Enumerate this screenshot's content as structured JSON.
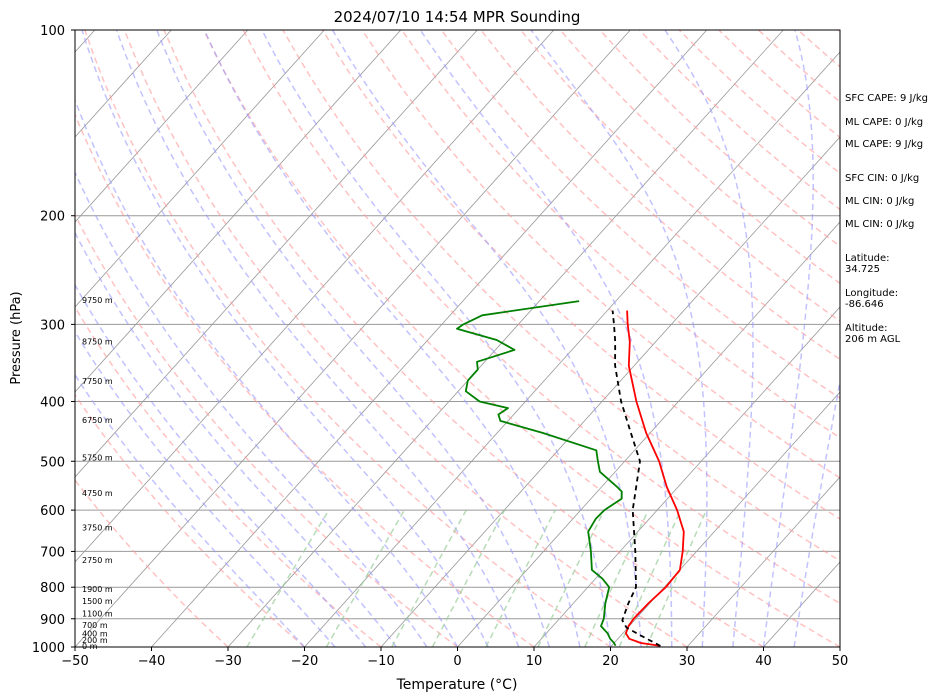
{
  "chart_data": {
    "type": "skew-t",
    "title": "2024/07/10 14:54 MPR Sounding",
    "xlabel": "Temperature (°C)",
    "ylabel": "Pressure (hPa)",
    "xlim": [
      -50,
      50
    ],
    "ylim": [
      1000,
      100
    ],
    "y_scale": "log",
    "grid": true,
    "x_ticks": [
      -50,
      -40,
      -30,
      -20,
      -10,
      0,
      10,
      20,
      30,
      40,
      50
    ],
    "y_ticks": [
      1000,
      900,
      800,
      700,
      600,
      500,
      400,
      300,
      200,
      100
    ],
    "colors": {
      "temperature": "#ff0000",
      "dewpoint": "#008000",
      "parcel": "#000000",
      "dry_adiabats": "#ff9999",
      "moist_adiabats": "#9999ff",
      "mixing_ratio": "#99cc99",
      "isotherms": "#999999"
    },
    "height_labels": [
      {
        "p": 1000,
        "label": "0 m"
      },
      {
        "p": 977,
        "label": "200 m"
      },
      {
        "p": 955,
        "label": "400 m"
      },
      {
        "p": 925,
        "label": "700 m"
      },
      {
        "p": 885,
        "label": "1100 m"
      },
      {
        "p": 845,
        "label": "1500 m"
      },
      {
        "p": 808,
        "label": "1900 m"
      },
      {
        "p": 725,
        "label": "2750 m"
      },
      {
        "p": 643,
        "label": "3750 m"
      },
      {
        "p": 565,
        "label": "4750 m"
      },
      {
        "p": 495,
        "label": "5750 m"
      },
      {
        "p": 430,
        "label": "6750 m"
      },
      {
        "p": 372,
        "label": "7750 m"
      },
      {
        "p": 321,
        "label": "8750 m"
      },
      {
        "p": 275,
        "label": "9750 m"
      }
    ],
    "series": [
      {
        "key": "temperature",
        "points": [
          [
            996,
            26.4
          ],
          [
            985,
            23.5
          ],
          [
            970,
            21.5
          ],
          [
            950,
            20.4
          ],
          [
            925,
            19.9
          ],
          [
            900,
            19.7
          ],
          [
            850,
            19.8
          ],
          [
            800,
            20.2
          ],
          [
            750,
            20.0
          ],
          [
            700,
            18.2
          ],
          [
            650,
            16.0
          ],
          [
            600,
            12.6
          ],
          [
            550,
            8.5
          ],
          [
            500,
            4.5
          ],
          [
            450,
            -0.5
          ],
          [
            400,
            -5.5
          ],
          [
            350,
            -10.7
          ],
          [
            320,
            -13.4
          ],
          [
            300,
            -15.7
          ],
          [
            285,
            -17.4
          ]
        ]
      },
      {
        "key": "parcel",
        "points": [
          [
            996,
            26.4
          ],
          [
            960,
            22.8
          ],
          [
            930,
            19.8
          ],
          [
            905,
            18.4
          ],
          [
            850,
            17.2
          ],
          [
            800,
            16.3
          ],
          [
            700,
            12.0
          ],
          [
            600,
            6.8
          ],
          [
            500,
            2.0
          ],
          [
            450,
            -2.5
          ],
          [
            400,
            -7.5
          ],
          [
            350,
            -12.5
          ],
          [
            320,
            -15.3
          ],
          [
            300,
            -17.5
          ],
          [
            285,
            -19.3
          ]
        ]
      },
      {
        "key": "dewpoint",
        "points": [
          [
            995,
            20.5
          ],
          [
            985,
            20.0
          ],
          [
            970,
            19.0
          ],
          [
            950,
            18.0
          ],
          [
            925,
            16.3
          ],
          [
            900,
            15.8
          ],
          [
            850,
            14.2
          ],
          [
            800,
            12.8
          ],
          [
            775,
            10.9
          ],
          [
            750,
            8.5
          ],
          [
            700,
            6.2
          ],
          [
            650,
            3.5
          ],
          [
            620,
            3.0
          ],
          [
            600,
            3.1
          ],
          [
            575,
            4.0
          ],
          [
            560,
            3.2
          ],
          [
            550,
            2.0
          ],
          [
            520,
            -2.0
          ],
          [
            500,
            -3.5
          ],
          [
            480,
            -5.0
          ],
          [
            450,
            -14.0
          ],
          [
            430,
            -21.0
          ],
          [
            420,
            -22.0
          ],
          [
            410,
            -21.5
          ],
          [
            400,
            -26.0
          ],
          [
            385,
            -29.0
          ],
          [
            370,
            -30.0
          ],
          [
            355,
            -30.0
          ],
          [
            345,
            -31.0
          ],
          [
            330,
            -27.5
          ],
          [
            318,
            -31.0
          ],
          [
            305,
            -37.5
          ],
          [
            300,
            -37.2
          ],
          [
            290,
            -35.8
          ],
          [
            275,
            -24.8
          ]
        ]
      }
    ]
  },
  "sidebar": {
    "sfc_cape": "SFC CAPE: 9 J/kg",
    "ml_cape_1": "ML CAPE: 0 J/kg",
    "ml_cape_2": "ML CAPE: 9 J/kg",
    "sfc_cin": "SFC CIN: 0 J/kg",
    "ml_cin_1": "ML CIN: 0 J/kg",
    "ml_cin_2": "ML CIN: 0 J/kg",
    "latitude_label": "Latitude:",
    "latitude_value": "34.725",
    "longitude_label": "Longitude:",
    "longitude_value": "-86.646",
    "altitude_label": "Altitude:",
    "altitude_value": "206 m AGL"
  }
}
